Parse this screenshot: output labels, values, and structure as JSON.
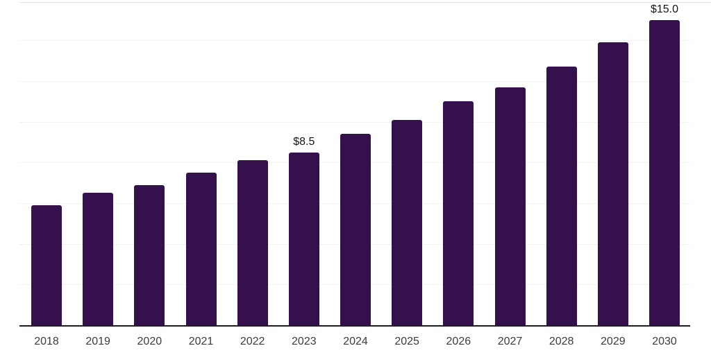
{
  "chart_data": {
    "type": "bar",
    "title": "",
    "xlabel": "",
    "ylabel": "",
    "categories": [
      "2018",
      "2019",
      "2020",
      "2021",
      "2022",
      "2023",
      "2024",
      "2025",
      "2026",
      "2027",
      "2028",
      "2029",
      "2030"
    ],
    "values": [
      5.9,
      6.5,
      6.9,
      7.5,
      8.1,
      8.5,
      9.4,
      10.1,
      11.0,
      11.7,
      12.7,
      13.9,
      15.0
    ],
    "value_labels": {
      "2023": "$8.5",
      "2030": "$15.0"
    },
    "ylim": [
      0,
      16
    ],
    "gridline_step": 2,
    "grid": "horizontal",
    "legend": false,
    "colors": {
      "bar": "#34114c",
      "gridline": "#f2f2f2",
      "top_border": "#e3e3e3",
      "axis_line": "#1f1f1f",
      "x_label": "#3c3c3c",
      "value_label": "#141414",
      "background": "#ffffff"
    }
  }
}
